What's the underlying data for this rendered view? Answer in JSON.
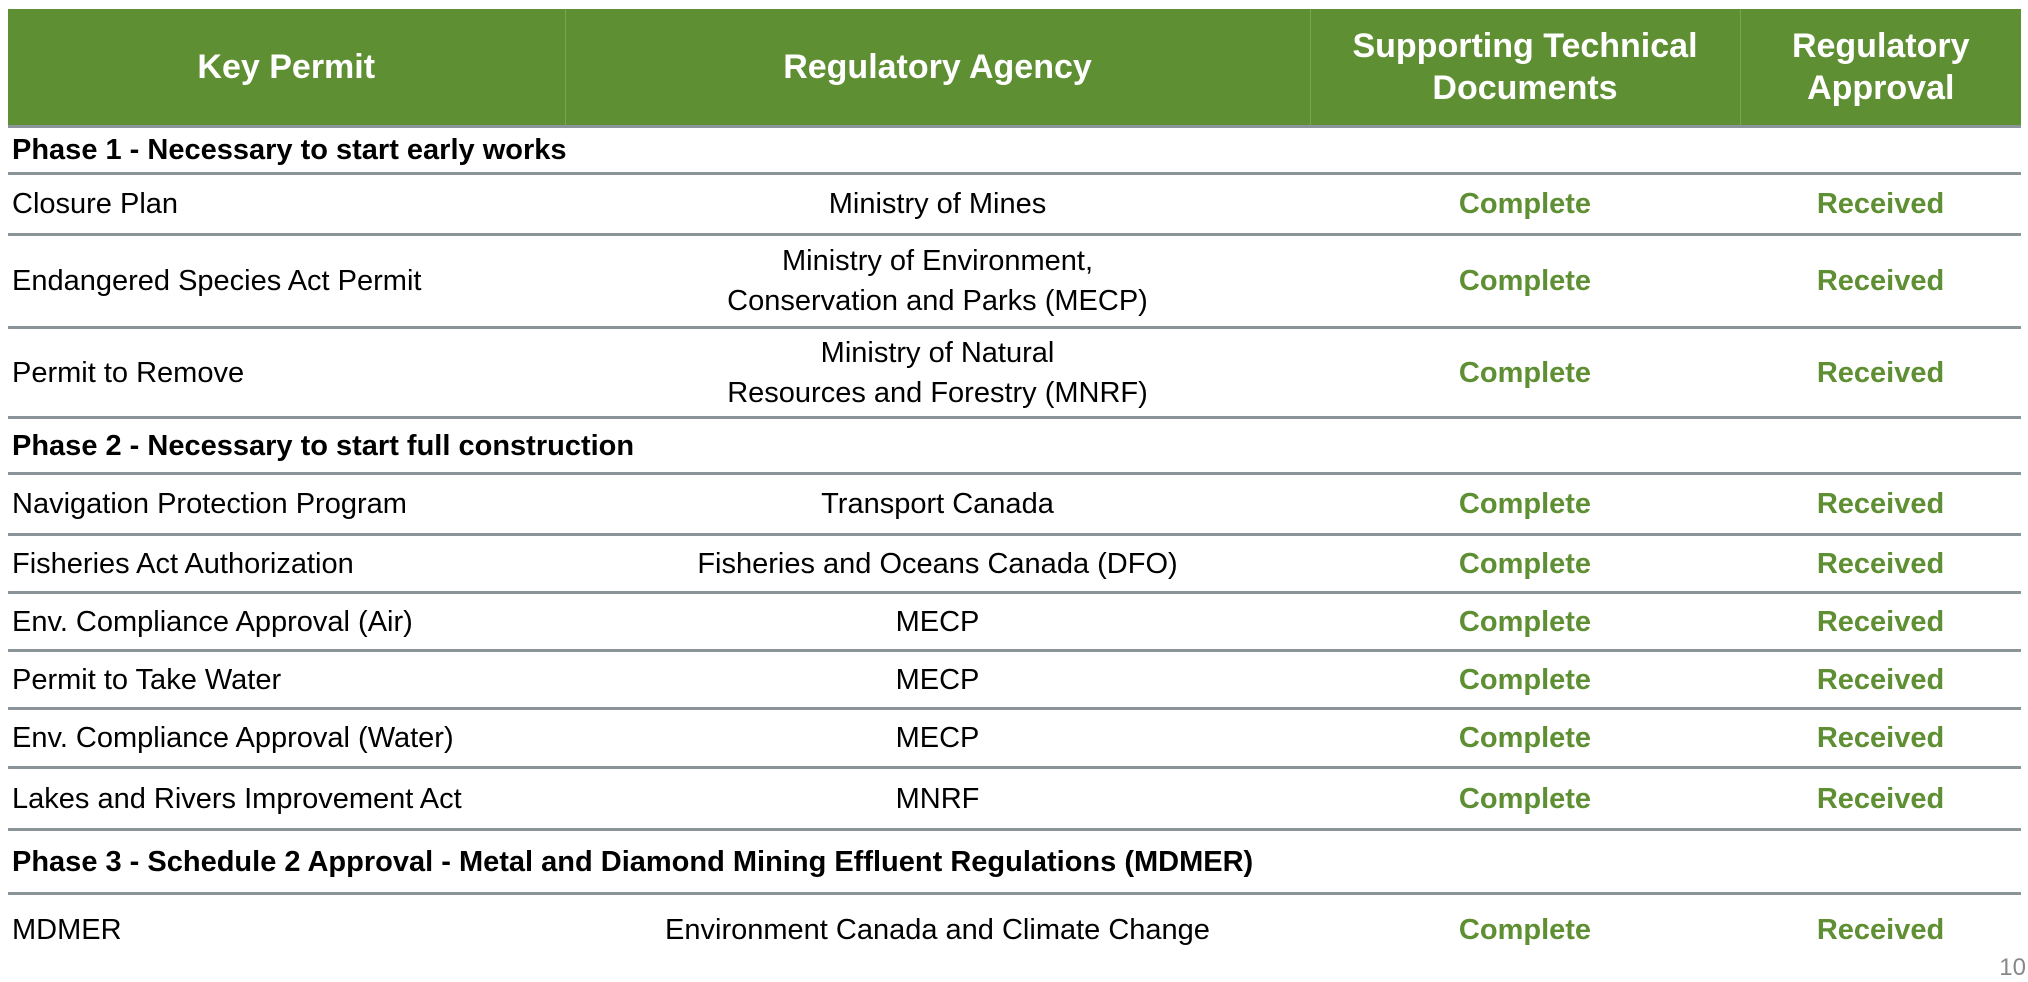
{
  "header": {
    "key_permit": "Key Permit",
    "agency": "Regulatory Agency",
    "docs": "Supporting Technical Documents",
    "approval": "Regulatory Approval"
  },
  "sections": [
    {
      "title": "Phase 1 - Necessary to start early works",
      "rows": [
        {
          "permit": "Closure Plan",
          "agency": "Ministry of Mines",
          "docs": "Complete",
          "approval": "Received"
        },
        {
          "permit": "Endangered Species Act Permit",
          "agency_l1": "Ministry of Environment,",
          "agency_l2": "Conservation and Parks (MECP)",
          "docs": "Complete",
          "approval": "Received"
        },
        {
          "permit": "Permit to Remove",
          "agency_l1": "Ministry of Natural",
          "agency_l2": "Resources and Forestry (MNRF)",
          "docs": "Complete",
          "approval": "Received"
        }
      ]
    },
    {
      "title": "Phase 2 - Necessary to start full construction",
      "rows": [
        {
          "permit": "Navigation Protection Program",
          "agency": "Transport Canada",
          "docs": "Complete",
          "approval": "Received"
        },
        {
          "permit": "Fisheries Act Authorization",
          "agency": "Fisheries and Oceans Canada (DFO)",
          "docs": "Complete",
          "approval": "Received"
        },
        {
          "permit": "Env. Compliance Approval (Air)",
          "agency": "MECP",
          "docs": "Complete",
          "approval": "Received"
        },
        {
          "permit": "Permit to Take Water",
          "agency": "MECP",
          "docs": "Complete",
          "approval": "Received"
        },
        {
          "permit": "Env. Compliance Approval (Water)",
          "agency": "MECP",
          "docs": "Complete",
          "approval": "Received"
        },
        {
          "permit": "Lakes and Rivers Improvement Act",
          "agency": "MNRF",
          "docs": "Complete",
          "approval": "Received"
        }
      ]
    },
    {
      "title": "Phase 3 - Schedule 2 Approval - Metal and Diamond Mining Effluent Regulations (MDMER)",
      "rows": [
        {
          "permit": "MDMER",
          "agency": "Environment Canada and Climate Change",
          "docs": "Complete",
          "approval": "Received"
        }
      ]
    }
  ],
  "page_number": "10"
}
